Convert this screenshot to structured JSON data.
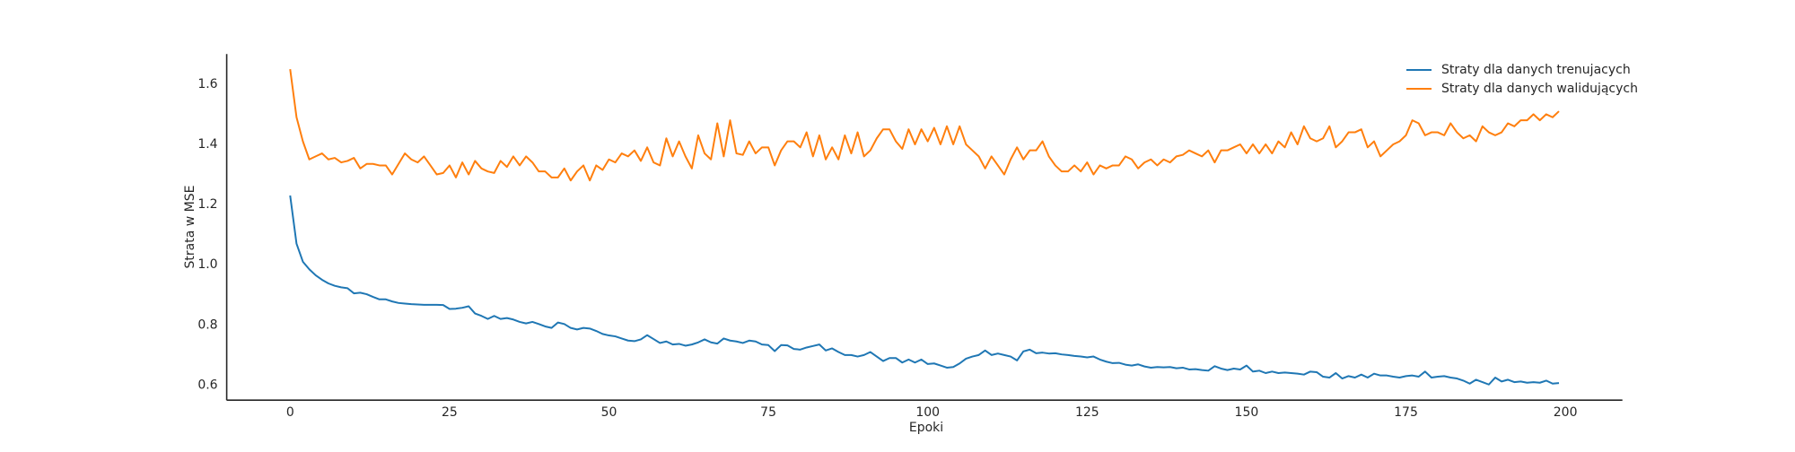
{
  "chart_data": {
    "type": "line",
    "x_label": "Epoki",
    "y_label": "Strata w MSE",
    "x": [
      0,
      1,
      2,
      3,
      4,
      5,
      6,
      7,
      8,
      9,
      10,
      11,
      12,
      13,
      14,
      15,
      16,
      17,
      18,
      19,
      20,
      21,
      22,
      23,
      24,
      25,
      26,
      27,
      28,
      29,
      30,
      31,
      32,
      33,
      34,
      35,
      36,
      37,
      38,
      39,
      40,
      41,
      42,
      43,
      44,
      45,
      46,
      47,
      48,
      49,
      50,
      51,
      52,
      53,
      54,
      55,
      56,
      57,
      58,
      59,
      60,
      61,
      62,
      63,
      64,
      65,
      66,
      67,
      68,
      69,
      70,
      71,
      72,
      73,
      74,
      75,
      76,
      77,
      78,
      79,
      80,
      81,
      82,
      83,
      84,
      85,
      86,
      87,
      88,
      89,
      90,
      91,
      92,
      93,
      94,
      95,
      96,
      97,
      98,
      99,
      100,
      101,
      102,
      103,
      104,
      105,
      106,
      107,
      108,
      109,
      110,
      111,
      112,
      113,
      114,
      115,
      116,
      117,
      118,
      119,
      120,
      121,
      122,
      123,
      124,
      125,
      126,
      127,
      128,
      129,
      130,
      131,
      132,
      133,
      134,
      135,
      136,
      137,
      138,
      139,
      140,
      141,
      142,
      143,
      144,
      145,
      146,
      147,
      148,
      149,
      150,
      151,
      152,
      153,
      154,
      155,
      156,
      157,
      158,
      159,
      160,
      161,
      162,
      163,
      164,
      165,
      166,
      167,
      168,
      169,
      170,
      171,
      172,
      173,
      174,
      175,
      176,
      177,
      178,
      179,
      180,
      181,
      182,
      183,
      184,
      185,
      186,
      187,
      188,
      189,
      190,
      191,
      192,
      193,
      194,
      195,
      196,
      197,
      198,
      199
    ],
    "series": [
      {
        "name": "Straty dla danych trenujacych",
        "color": "#1f77b4",
        "values": [
          1.23,
          1.07,
          1.01,
          0.985,
          0.965,
          0.95,
          0.938,
          0.93,
          0.925,
          0.922,
          0.905,
          0.907,
          0.902,
          0.893,
          0.885,
          0.885,
          0.878,
          0.873,
          0.871,
          0.869,
          0.868,
          0.867,
          0.867,
          0.867,
          0.866,
          0.853,
          0.854,
          0.857,
          0.862,
          0.838,
          0.83,
          0.82,
          0.83,
          0.82,
          0.823,
          0.818,
          0.81,
          0.805,
          0.81,
          0.803,
          0.795,
          0.79,
          0.808,
          0.803,
          0.79,
          0.785,
          0.79,
          0.788,
          0.78,
          0.77,
          0.765,
          0.762,
          0.755,
          0.748,
          0.746,
          0.752,
          0.766,
          0.753,
          0.74,
          0.745,
          0.735,
          0.737,
          0.731,
          0.735,
          0.742,
          0.752,
          0.742,
          0.738,
          0.755,
          0.748,
          0.745,
          0.74,
          0.748,
          0.745,
          0.735,
          0.733,
          0.713,
          0.733,
          0.732,
          0.72,
          0.718,
          0.725,
          0.73,
          0.735,
          0.715,
          0.722,
          0.71,
          0.7,
          0.7,
          0.695,
          0.7,
          0.71,
          0.695,
          0.68,
          0.69,
          0.69,
          0.675,
          0.685,
          0.675,
          0.685,
          0.67,
          0.672,
          0.665,
          0.658,
          0.66,
          0.672,
          0.688,
          0.695,
          0.7,
          0.715,
          0.7,
          0.705,
          0.7,
          0.695,
          0.682,
          0.712,
          0.718,
          0.706,
          0.708,
          0.705,
          0.706,
          0.702,
          0.7,
          0.697,
          0.695,
          0.692,
          0.695,
          0.685,
          0.678,
          0.673,
          0.674,
          0.668,
          0.665,
          0.669,
          0.662,
          0.658,
          0.66,
          0.659,
          0.66,
          0.656,
          0.658,
          0.652,
          0.653,
          0.65,
          0.648,
          0.663,
          0.655,
          0.65,
          0.655,
          0.652,
          0.665,
          0.645,
          0.648,
          0.64,
          0.645,
          0.64,
          0.642,
          0.64,
          0.638,
          0.635,
          0.645,
          0.643,
          0.628,
          0.625,
          0.64,
          0.622,
          0.63,
          0.625,
          0.635,
          0.625,
          0.638,
          0.632,
          0.632,
          0.628,
          0.625,
          0.63,
          0.632,
          0.628,
          0.645,
          0.625,
          0.628,
          0.63,
          0.625,
          0.622,
          0.615,
          0.605,
          0.618,
          0.61,
          0.602,
          0.625,
          0.612,
          0.618,
          0.61,
          0.612,
          0.608,
          0.61,
          0.608,
          0.615,
          0.605,
          0.607
        ]
      },
      {
        "name": "Straty dla danych walidujących",
        "color": "#ff7f0e",
        "values": [
          1.65,
          1.49,
          1.41,
          1.35,
          1.36,
          1.37,
          1.35,
          1.355,
          1.34,
          1.345,
          1.355,
          1.32,
          1.335,
          1.335,
          1.33,
          1.33,
          1.3,
          1.335,
          1.37,
          1.35,
          1.34,
          1.36,
          1.33,
          1.3,
          1.305,
          1.33,
          1.29,
          1.34,
          1.3,
          1.345,
          1.32,
          1.31,
          1.305,
          1.345,
          1.325,
          1.36,
          1.33,
          1.36,
          1.34,
          1.31,
          1.31,
          1.29,
          1.29,
          1.32,
          1.28,
          1.31,
          1.33,
          1.28,
          1.33,
          1.315,
          1.35,
          1.34,
          1.37,
          1.36,
          1.38,
          1.345,
          1.39,
          1.34,
          1.33,
          1.42,
          1.36,
          1.41,
          1.36,
          1.32,
          1.43,
          1.37,
          1.35,
          1.47,
          1.36,
          1.48,
          1.37,
          1.365,
          1.41,
          1.37,
          1.39,
          1.39,
          1.33,
          1.38,
          1.41,
          1.41,
          1.39,
          1.44,
          1.36,
          1.43,
          1.35,
          1.39,
          1.35,
          1.43,
          1.37,
          1.44,
          1.36,
          1.38,
          1.42,
          1.45,
          1.45,
          1.41,
          1.385,
          1.45,
          1.4,
          1.45,
          1.41,
          1.455,
          1.4,
          1.46,
          1.4,
          1.46,
          1.4,
          1.38,
          1.36,
          1.32,
          1.36,
          1.33,
          1.3,
          1.35,
          1.39,
          1.35,
          1.38,
          1.38,
          1.41,
          1.36,
          1.33,
          1.31,
          1.31,
          1.33,
          1.31,
          1.34,
          1.3,
          1.33,
          1.32,
          1.33,
          1.33,
          1.36,
          1.35,
          1.32,
          1.34,
          1.35,
          1.33,
          1.35,
          1.34,
          1.36,
          1.365,
          1.38,
          1.37,
          1.36,
          1.38,
          1.34,
          1.38,
          1.38,
          1.39,
          1.4,
          1.37,
          1.4,
          1.37,
          1.4,
          1.37,
          1.41,
          1.39,
          1.44,
          1.4,
          1.46,
          1.42,
          1.41,
          1.42,
          1.46,
          1.39,
          1.41,
          1.44,
          1.44,
          1.45,
          1.39,
          1.41,
          1.36,
          1.38,
          1.4,
          1.41,
          1.43,
          1.48,
          1.47,
          1.43,
          1.44,
          1.44,
          1.43,
          1.47,
          1.44,
          1.42,
          1.43,
          1.41,
          1.46,
          1.44,
          1.43,
          1.44,
          1.47,
          1.46,
          1.48,
          1.48,
          1.5,
          1.48,
          1.5,
          1.49,
          1.51
        ]
      }
    ],
    "xlim": [
      -9.95,
      208.95
    ],
    "xticks": [
      0,
      25,
      50,
      75,
      100,
      125,
      150,
      175,
      200
    ],
    "ylim": [
      0.55,
      1.7
    ],
    "yticks": [
      0.6,
      0.8,
      {
        "value": 1,
        "label": "1.0"
      },
      1.2,
      1.4,
      1.6
    ],
    "grid": false,
    "legend": "upper right"
  }
}
